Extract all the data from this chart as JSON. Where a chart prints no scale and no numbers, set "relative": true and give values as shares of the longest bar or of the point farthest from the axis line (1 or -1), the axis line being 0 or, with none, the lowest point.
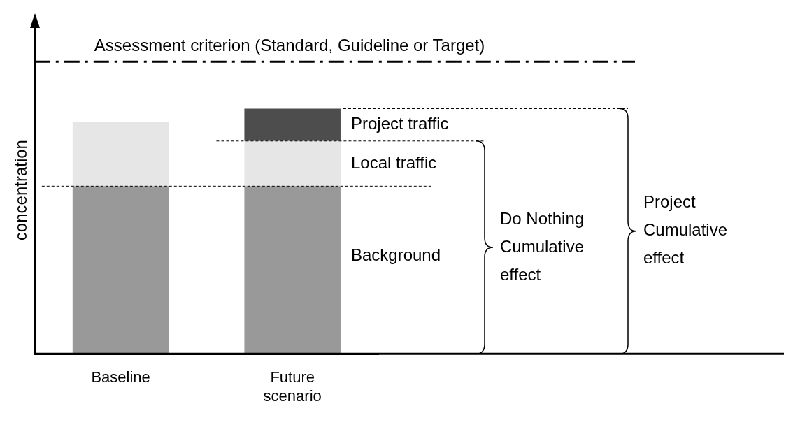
{
  "chart_data": {
    "type": "bar",
    "stacked": true,
    "relative": true,
    "ylabel": "concentration",
    "categories": [
      "Baseline",
      "Future scenario"
    ],
    "series": [
      {
        "name": "Background",
        "color": "#999999",
        "values": [
          0.684,
          0.684
        ]
      },
      {
        "name": "Local traffic",
        "color": "#e6e6e6",
        "values": [
          0.263,
          0.184
        ]
      },
      {
        "name": "Project traffic",
        "color": "#4d4d4d",
        "values": [
          null,
          0.132
        ]
      }
    ],
    "ref_lines": [
      {
        "axis": "y",
        "value": 1.192,
        "label": "Assessment criterion (Standard, Guideline or Target)",
        "line_style": "dashed"
      },
      {
        "axis": "y",
        "value": 0.684,
        "line_style": "dashed"
      },
      {
        "axis": "y",
        "value": 0.868,
        "line_style": "dashed"
      },
      {
        "axis": "y",
        "value": 1.0,
        "line_style": "dashed"
      }
    ],
    "annotations": [
      "Do Nothing Cumulative effect",
      "Project Cumulative effect"
    ],
    "grid": false,
    "legend": false
  }
}
